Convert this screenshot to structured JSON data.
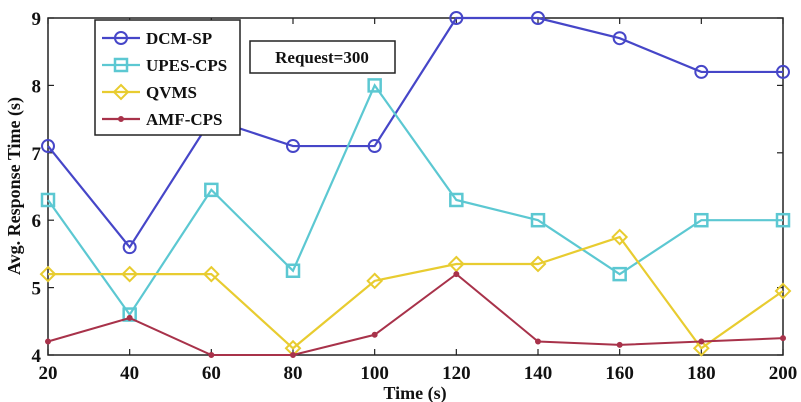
{
  "chart_data": {
    "type": "line",
    "xlabel": "Time (s)",
    "ylabel": "Avg. Response Time (s)",
    "x": [
      20,
      40,
      60,
      80,
      100,
      120,
      140,
      160,
      180,
      200
    ],
    "xlim": [
      20,
      200
    ],
    "ylim": [
      4,
      9
    ],
    "xticks": [
      "20",
      "40",
      "60",
      "80",
      "100",
      "120",
      "140",
      "160",
      "180",
      "200"
    ],
    "yticks": [
      "4",
      "5",
      "6",
      "7",
      "8",
      "9"
    ],
    "grid": false,
    "legend_position": "top-left",
    "annotation": "Request=300",
    "series": [
      {
        "name": "DCM-SP",
        "color": "#4646c8",
        "marker": "circle",
        "values": [
          7.1,
          5.6,
          7.5,
          7.1,
          7.1,
          9.0,
          9.0,
          8.7,
          8.2,
          8.2
        ]
      },
      {
        "name": "UPES-CPS",
        "color": "#5cc8d2",
        "marker": "square",
        "values": [
          6.3,
          4.6,
          6.45,
          5.25,
          8.0,
          6.3,
          6.0,
          5.2,
          6.0,
          6.0
        ]
      },
      {
        "name": "QVMS",
        "color": "#e8cc30",
        "marker": "diamond",
        "values": [
          5.2,
          5.2,
          5.2,
          4.1,
          5.1,
          5.35,
          5.35,
          5.75,
          4.1,
          4.95
        ]
      },
      {
        "name": "AMF-CPS",
        "color": "#a8324a",
        "marker": "dot",
        "values": [
          4.2,
          4.55,
          4.0,
          4.0,
          4.3,
          5.2,
          4.2,
          4.15,
          4.2,
          4.25
        ]
      }
    ]
  }
}
